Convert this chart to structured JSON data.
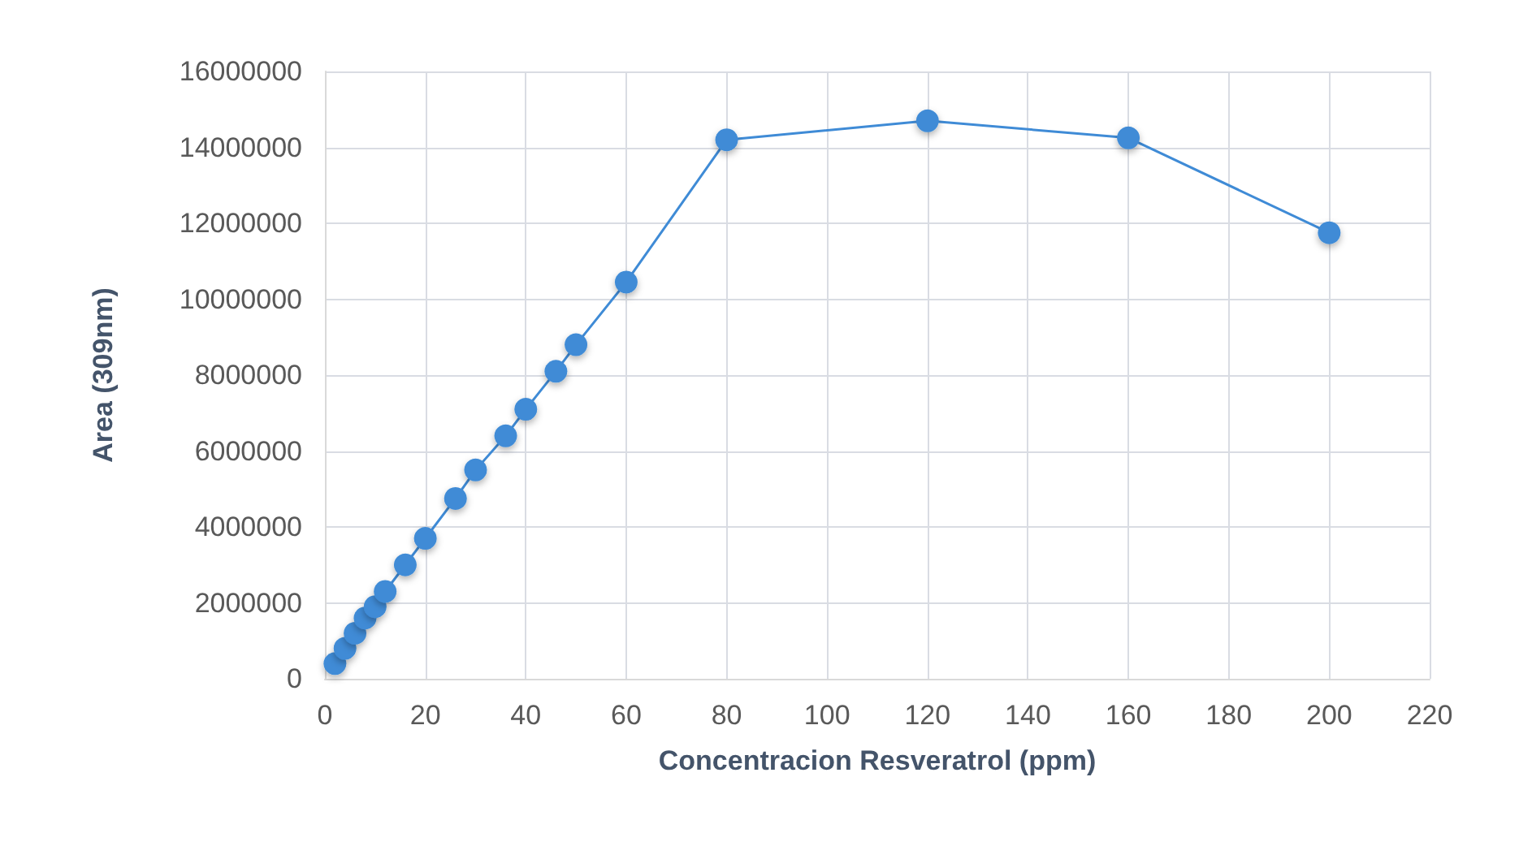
{
  "chart_data": {
    "type": "line",
    "xlabel": "Concentracion Resveratrol (ppm)",
    "ylabel": "Area (309nm)",
    "x": [
      2,
      4,
      6,
      8,
      10,
      12,
      16,
      20,
      26,
      30,
      36,
      40,
      46,
      50,
      60,
      80,
      120,
      160,
      200
    ],
    "series": [
      {
        "color": "#3f8bd6",
        "values": [
          400000,
          800000,
          1200000,
          1600000,
          1900000,
          2300000,
          3000000,
          3700000,
          4750000,
          5500000,
          6400000,
          7100000,
          8100000,
          8800000,
          10450000,
          14200000,
          14700000,
          14250000,
          11750000
        ]
      }
    ],
    "xlim": [
      0,
      220
    ],
    "xticks": [
      0,
      20,
      40,
      60,
      80,
      100,
      120,
      140,
      160,
      180,
      200,
      220
    ],
    "ylim": [
      0,
      16000000
    ],
    "yticks": [
      0,
      2000000,
      4000000,
      6000000,
      8000000,
      10000000,
      12000000,
      14000000,
      16000000
    ],
    "grid": true,
    "marker": "circle",
    "line_style": "solid"
  }
}
